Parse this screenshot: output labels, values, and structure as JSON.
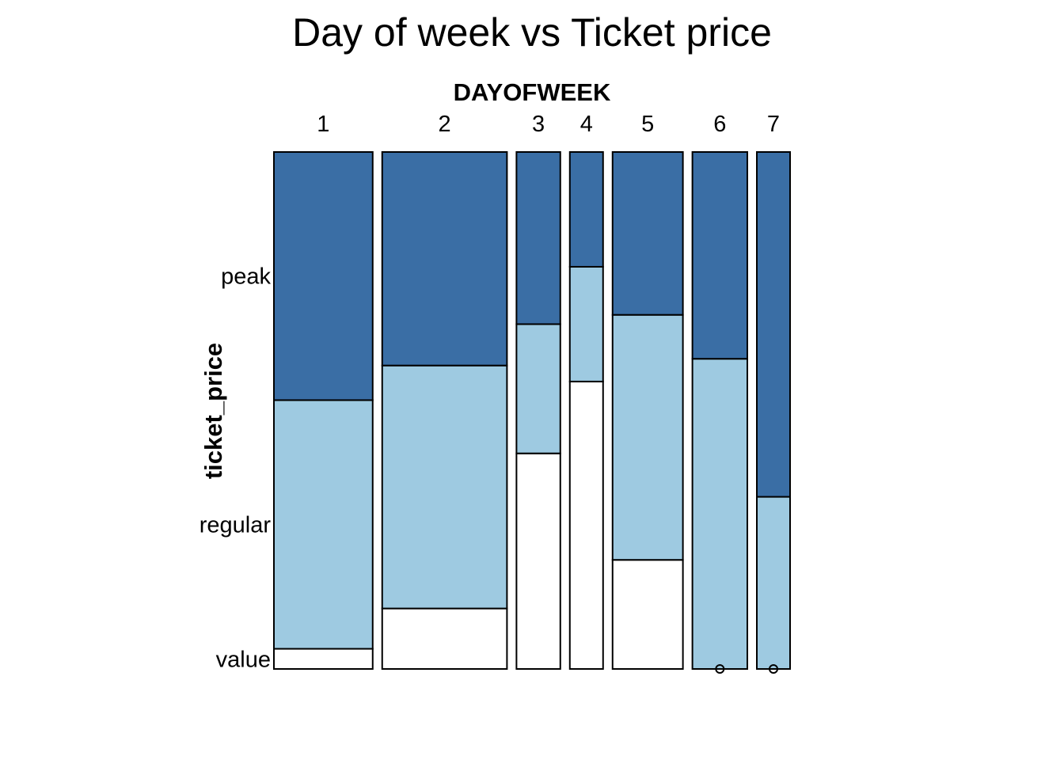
{
  "chart_data": {
    "type": "mosaic",
    "title": "Day of week vs Ticket price",
    "xlabel": "DAYOFWEEK",
    "ylabel": "ticket_price",
    "x_categories": [
      "1",
      "2",
      "3",
      "4",
      "5",
      "6",
      "7"
    ],
    "x_proportions": [
      0.205,
      0.259,
      0.091,
      0.069,
      0.146,
      0.114,
      0.069
    ],
    "y_categories": [
      "value",
      "regular",
      "peak"
    ],
    "colors": {
      "value": "#ffffff",
      "regular": "#9ecae1",
      "peak": "#3a6ea5"
    },
    "series": [
      {
        "name": "value",
        "values": [
          0.039,
          0.117,
          0.417,
          0.556,
          0.211,
          0.0,
          0.0
        ]
      },
      {
        "name": "regular",
        "values": [
          0.481,
          0.47,
          0.25,
          0.222,
          0.474,
          0.6,
          0.333
        ]
      },
      {
        "name": "peak",
        "values": [
          0.48,
          0.413,
          0.333,
          0.222,
          0.315,
          0.4,
          0.667
        ]
      }
    ],
    "grid": false,
    "legend": "none"
  }
}
